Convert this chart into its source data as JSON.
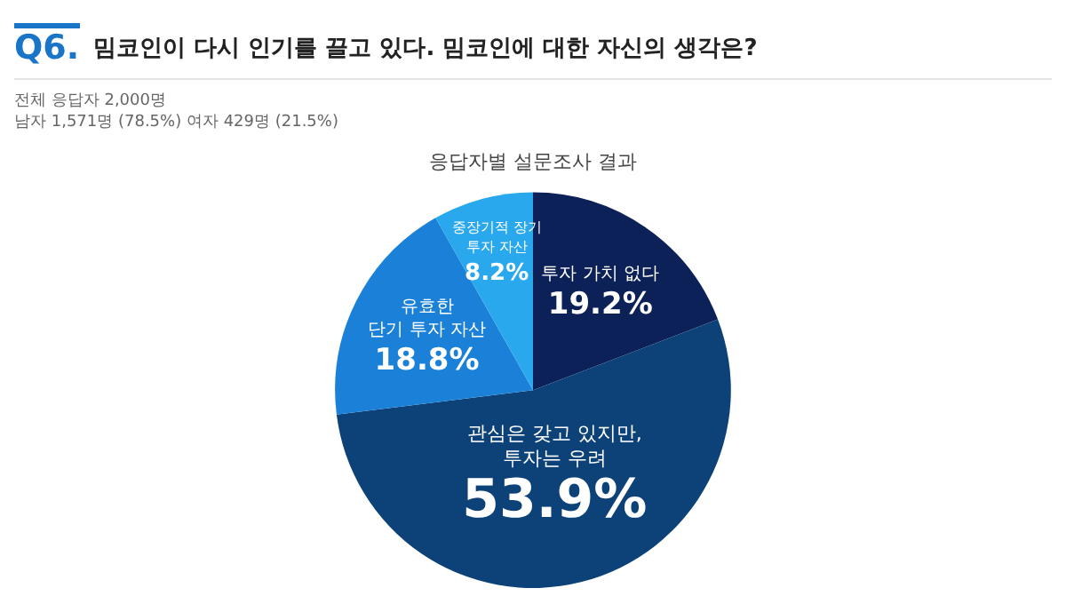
{
  "chart_data": {
    "type": "pie",
    "title": "Q6. 밈코인이 다시 인기를 끌고 있다. 밈코인에 대한 자신의 생각은?",
    "subtitle": "응답자별 설문조사 결과",
    "annotations": [
      "전체 응답자 2,000명",
      "남자 1,571명 (78.5%) 여자 429명 (21.5%)"
    ],
    "categories": [
      "투자 가치 없다",
      "관심은 갖고 있지만,\n투자는 우려",
      "유효한\n단기 투자 자산",
      "중장기적 장기\n투자 자산"
    ],
    "values": [
      19.2,
      53.9,
      18.8,
      8.2
    ],
    "colors": [
      "#0c2157",
      "#0d4279",
      "#1b80d8",
      "#2aa8ee"
    ],
    "value_labels": [
      "19.2%",
      "53.9%",
      "18.8%",
      "8.2%"
    ],
    "legend": false
  }
}
